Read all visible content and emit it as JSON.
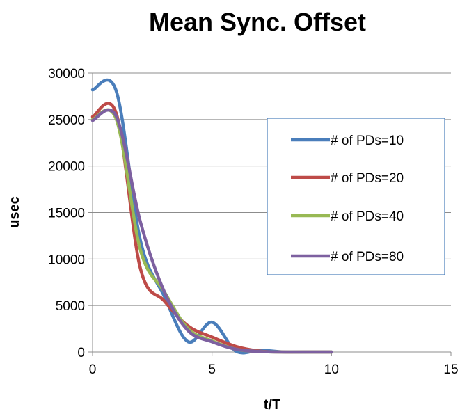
{
  "chart_data": {
    "type": "line",
    "title": "Mean Sync. Offset",
    "xlabel": "t/T",
    "ylabel": "usec",
    "xlim": [
      0,
      15
    ],
    "ylim": [
      0,
      30000
    ],
    "xticks": [
      0,
      5,
      10,
      15
    ],
    "yticks": [
      0,
      5000,
      10000,
      15000,
      20000,
      25000,
      30000
    ],
    "grid": "horizontal",
    "legend_position": "right",
    "series": [
      {
        "name": "# of PDs=10",
        "color": "#4a7ebb",
        "x": [
          0,
          1,
          2,
          3,
          4,
          5,
          6,
          7,
          8,
          9,
          10
        ],
        "y": [
          28200,
          28000,
          12000,
          6000,
          1100,
          3200,
          100,
          200,
          0,
          0,
          0
        ]
      },
      {
        "name": "# of PDs=20",
        "color": "#be4b48",
        "x": [
          0,
          1,
          2,
          3,
          4,
          5,
          6,
          7,
          8,
          9,
          10
        ],
        "y": [
          25300,
          25600,
          9000,
          5500,
          2800,
          1600,
          600,
          100,
          0,
          0,
          0
        ]
      },
      {
        "name": "# of PDs=40",
        "color": "#98b954",
        "x": [
          0,
          1,
          2,
          3,
          4,
          5,
          6,
          7,
          8,
          9,
          10
        ],
        "y": [
          25000,
          25000,
          11000,
          6500,
          2500,
          1200,
          300,
          50,
          0,
          0,
          0
        ]
      },
      {
        "name": "# of PDs=80",
        "color": "#7d60a0",
        "x": [
          0,
          1,
          2,
          3,
          4,
          5,
          6,
          7,
          8,
          9,
          10
        ],
        "y": [
          24900,
          25300,
          14000,
          6500,
          2300,
          1100,
          300,
          50,
          0,
          0,
          0
        ]
      }
    ]
  }
}
